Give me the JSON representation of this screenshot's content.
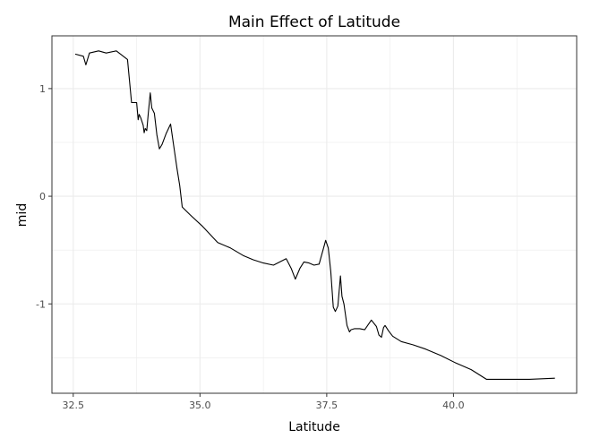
{
  "chart_data": {
    "type": "line",
    "title": "Main Effect of Latitude",
    "xlabel": "Latitude",
    "ylabel": "mid",
    "xlim": [
      32.08,
      42.43
    ],
    "ylim": [
      -1.83,
      1.49
    ],
    "x_ticks": [
      32.5,
      35.0,
      37.5,
      40.0
    ],
    "x_tick_labels": [
      "32.5",
      "35.0",
      "37.5",
      "40.0"
    ],
    "y_ticks": [
      -1,
      0,
      1
    ],
    "y_tick_labels": [
      "-1",
      "0",
      "1"
    ],
    "grid": true,
    "legend": "none",
    "colors": {
      "line": "#000000",
      "grid": "#ebebeb",
      "panel_border": "#333333",
      "background": "#ffffff"
    },
    "series": [
      {
        "x": [
          32.54,
          32.7,
          32.75,
          32.82,
          33.0,
          33.15,
          33.35,
          33.57,
          33.65,
          33.75,
          33.78,
          33.8,
          33.83,
          33.88,
          33.9,
          33.92,
          33.95,
          33.98,
          34.02,
          34.05,
          34.1,
          34.15,
          34.2,
          34.25,
          34.33,
          34.42,
          34.5,
          34.55,
          34.6,
          34.65,
          34.8,
          35.05,
          35.35,
          35.6,
          35.85,
          36.05,
          36.25,
          36.45,
          36.7,
          36.8,
          36.88,
          36.97,
          37.05,
          37.15,
          37.25,
          37.35,
          37.48,
          37.53,
          37.58,
          37.63,
          37.67,
          37.72,
          37.77,
          37.8,
          37.84,
          37.9,
          37.95,
          37.98,
          38.05,
          38.15,
          38.25,
          38.38,
          38.48,
          38.53,
          38.58,
          38.62,
          38.65,
          38.72,
          38.8,
          38.97,
          39.2,
          39.45,
          39.75,
          40.05,
          40.35,
          40.65,
          41.0,
          41.5,
          42.0
        ],
        "y": [
          1.32,
          1.3,
          1.22,
          1.33,
          1.35,
          1.33,
          1.35,
          1.27,
          0.87,
          0.87,
          0.71,
          0.76,
          0.73,
          0.66,
          0.59,
          0.63,
          0.61,
          0.77,
          0.96,
          0.82,
          0.77,
          0.57,
          0.44,
          0.48,
          0.58,
          0.67,
          0.41,
          0.25,
          0.1,
          -0.1,
          -0.17,
          -0.28,
          -0.43,
          -0.48,
          -0.55,
          -0.59,
          -0.62,
          -0.64,
          -0.58,
          -0.67,
          -0.77,
          -0.67,
          -0.61,
          -0.62,
          -0.64,
          -0.63,
          -0.41,
          -0.48,
          -0.7,
          -1.03,
          -1.07,
          -1.02,
          -0.74,
          -0.93,
          -1.0,
          -1.2,
          -1.26,
          -1.24,
          -1.23,
          -1.23,
          -1.24,
          -1.15,
          -1.21,
          -1.29,
          -1.31,
          -1.22,
          -1.2,
          -1.25,
          -1.3,
          -1.35,
          -1.38,
          -1.42,
          -1.48,
          -1.55,
          -1.61,
          -1.7,
          -1.7,
          -1.7,
          -1.69
        ]
      }
    ]
  }
}
